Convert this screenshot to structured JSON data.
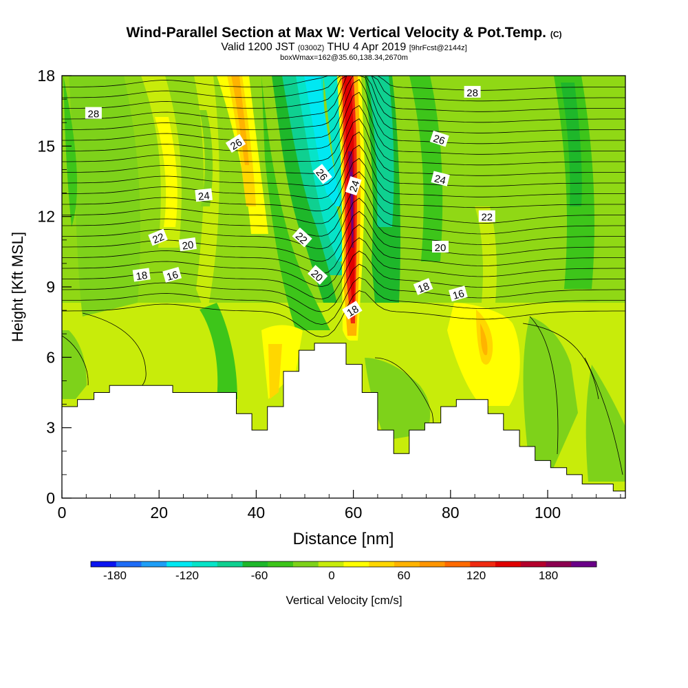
{
  "title": {
    "main": "Wind-Parallel Section at Max W: Vertical Velocity & Pot.Temp.",
    "main_mark": "(C)",
    "line2_a": "Valid 1200 JST",
    "line2_b": "(0300Z)",
    "line2_c": "THU 4 Apr 2019",
    "line2_d": "[9hrFcst@2144z]",
    "line3": "boxWmax=162@35.60,138.34,2670m"
  },
  "colorbar": {
    "title": "Vertical Velocity [cm/s]",
    "tick_labels": [
      "-180",
      "-120",
      "-60",
      "0",
      "60",
      "120",
      "180"
    ],
    "tick_values": [
      -180,
      -120,
      -60,
      0,
      60,
      120,
      180
    ],
    "range": [
      -200,
      220
    ],
    "colors": [
      "#0a14f0",
      "#1e6cf6",
      "#1e9ef6",
      "#00e8f2",
      "#06e4c8",
      "#0fd090",
      "#1eb72a",
      "#3dc51a",
      "#7ed21a",
      "#c8ec0a",
      "#ffff00",
      "#ffd700",
      "#ffb300",
      "#ff9500",
      "#ff6a00",
      "#f02a10",
      "#e00000",
      "#b4002c",
      "#8c0050",
      "#6a0088"
    ]
  },
  "chart_data": {
    "type": "heatmap",
    "xlabel": "Distance [nm]",
    "ylabel": "Height [Kft MSL]",
    "xlim": [
      0,
      116
    ],
    "ylim": [
      0,
      18
    ],
    "xticks": [
      0,
      20,
      40,
      60,
      80,
      100
    ],
    "yticks": [
      0,
      3,
      6,
      9,
      12,
      15,
      18
    ],
    "field": "Vertical Velocity [cm/s]",
    "contour_field": "Potential temperature",
    "contour_labels": [
      {
        "text": "28",
        "x": 6.5,
        "y": 16.4,
        "rot": 0
      },
      {
        "text": "28",
        "x": 84.5,
        "y": 17.3,
        "rot": 0
      },
      {
        "text": "26",
        "x": 35.8,
        "y": 15.1,
        "rot": -32
      },
      {
        "text": "26",
        "x": 77.7,
        "y": 15.3,
        "rot": 18
      },
      {
        "text": "26",
        "x": 53.6,
        "y": 13.8,
        "rot": 52
      },
      {
        "text": "24",
        "x": 29.2,
        "y": 12.9,
        "rot": -6
      },
      {
        "text": "24",
        "x": 60.1,
        "y": 13.3,
        "rot": -72
      },
      {
        "text": "24",
        "x": 77.9,
        "y": 13.6,
        "rot": 14
      },
      {
        "text": "22",
        "x": 19.8,
        "y": 11.1,
        "rot": -22
      },
      {
        "text": "22",
        "x": 49.4,
        "y": 11.1,
        "rot": 42
      },
      {
        "text": "22",
        "x": 87.5,
        "y": 12.0,
        "rot": 0
      },
      {
        "text": "20",
        "x": 25.9,
        "y": 10.8,
        "rot": -8
      },
      {
        "text": "20",
        "x": 52.6,
        "y": 9.5,
        "rot": 42
      },
      {
        "text": "20",
        "x": 77.9,
        "y": 10.7,
        "rot": 0
      },
      {
        "text": "18",
        "x": 16.4,
        "y": 9.5,
        "rot": -8
      },
      {
        "text": "18",
        "x": 59.8,
        "y": 8.0,
        "rot": -32
      },
      {
        "text": "18",
        "x": 74.4,
        "y": 9.0,
        "rot": -22
      },
      {
        "text": "16",
        "x": 22.7,
        "y": 9.5,
        "rot": -16
      },
      {
        "text": "16",
        "x": 81.6,
        "y": 8.7,
        "rot": -16
      }
    ],
    "terrain": [
      [
        0,
        3.9
      ],
      [
        3.2,
        3.9
      ],
      [
        3.2,
        4.2
      ],
      [
        6.6,
        4.2
      ],
      [
        6.6,
        4.5
      ],
      [
        9.8,
        4.5
      ],
      [
        9.8,
        4.8
      ],
      [
        22.8,
        4.8
      ],
      [
        22.8,
        4.5
      ],
      [
        35.9,
        4.5
      ],
      [
        35.9,
        3.6
      ],
      [
        39.1,
        3.6
      ],
      [
        39.1,
        2.9
      ],
      [
        42.3,
        2.9
      ],
      [
        42.3,
        3.9
      ],
      [
        45.6,
        3.9
      ],
      [
        45.6,
        5.4
      ],
      [
        48.8,
        5.4
      ],
      [
        48.8,
        6.3
      ],
      [
        52.0,
        6.3
      ],
      [
        52.0,
        6.6
      ],
      [
        58.5,
        6.6
      ],
      [
        58.5,
        5.7
      ],
      [
        61.8,
        5.7
      ],
      [
        61.8,
        4.5
      ],
      [
        65.0,
        4.5
      ],
      [
        65.0,
        2.9
      ],
      [
        68.3,
        2.9
      ],
      [
        68.3,
        1.9
      ],
      [
        71.5,
        1.9
      ],
      [
        71.5,
        2.9
      ],
      [
        74.7,
        2.9
      ],
      [
        74.7,
        3.2
      ],
      [
        78.0,
        3.2
      ],
      [
        78.0,
        3.9
      ],
      [
        81.2,
        3.9
      ],
      [
        81.2,
        4.2
      ],
      [
        87.7,
        4.2
      ],
      [
        87.7,
        3.6
      ],
      [
        90.9,
        3.6
      ],
      [
        90.9,
        2.9
      ],
      [
        94.2,
        2.9
      ],
      [
        94.2,
        2.2
      ],
      [
        97.4,
        2.2
      ],
      [
        97.4,
        1.6
      ],
      [
        100.6,
        1.6
      ],
      [
        100.6,
        1.3
      ],
      [
        103.9,
        1.3
      ],
      [
        103.9,
        1.0
      ],
      [
        107.1,
        1.0
      ],
      [
        107.1,
        0.6
      ],
      [
        113.5,
        0.6
      ],
      [
        113.5,
        0.3
      ],
      [
        116,
        0.3
      ]
    ]
  }
}
